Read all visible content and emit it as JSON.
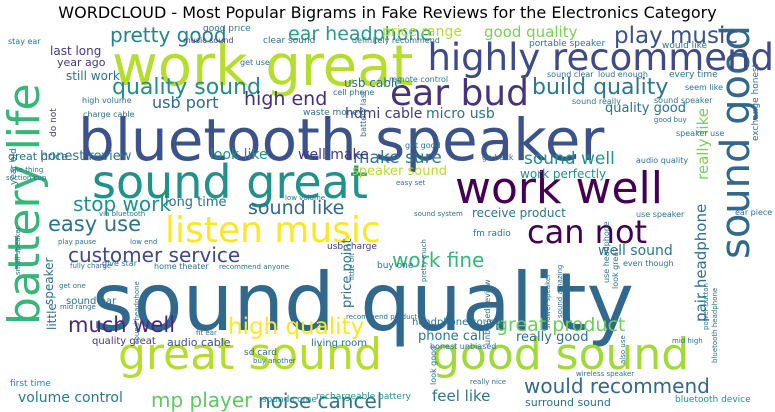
{
  "title": "WORDCLOUD - Most Popular Bigrams in Fake Reviews for the Electronics Category",
  "words": [
    {
      "text": "sound quality",
      "color": "#31688e"
    },
    {
      "text": "bluetooth speaker",
      "color": "#3b528b"
    },
    {
      "text": "work great",
      "color": "#b5de2b"
    },
    {
      "text": "battery life",
      "color": "#35b779"
    },
    {
      "text": "sound great",
      "color": "#21918c"
    },
    {
      "text": "work well",
      "color": "#440154"
    },
    {
      "text": "great sound",
      "color": "#b5de2b"
    },
    {
      "text": "good sound",
      "color": "#a0da39"
    },
    {
      "text": "sound good",
      "color": "#31688e"
    },
    {
      "text": "highly recommend",
      "color": "#3e4a89"
    },
    {
      "text": "listen music",
      "color": "#fde725"
    },
    {
      "text": "ear bud",
      "color": "#46337e"
    },
    {
      "text": "can not",
      "color": "#440154"
    },
    {
      "text": "build quality",
      "color": "#2a788e"
    },
    {
      "text": "quality sound",
      "color": "#228d8d"
    },
    {
      "text": "play music",
      "color": "#3b528b"
    },
    {
      "text": "pretty good",
      "color": "#26828e"
    },
    {
      "text": "ear headphone",
      "color": "#1f9e89"
    },
    {
      "text": "high end",
      "color": "#472d7b"
    },
    {
      "text": "customer service",
      "color": "#3e4a89"
    },
    {
      "text": "high quality",
      "color": "#fde725"
    },
    {
      "text": "much well",
      "color": "#482878"
    },
    {
      "text": "easy use",
      "color": "#2c728e"
    },
    {
      "text": "stop work",
      "color": "#21918c"
    },
    {
      "text": "sound like",
      "color": "#31688e"
    },
    {
      "text": "work fine",
      "color": "#35b779"
    },
    {
      "text": "noise cancel",
      "color": "#2c728e"
    },
    {
      "text": "mp player",
      "color": "#5ec962"
    },
    {
      "text": "would recommend",
      "color": "#31688e"
    },
    {
      "text": "great product",
      "color": "#6ece58"
    },
    {
      "text": "sound well",
      "color": "#21918c"
    },
    {
      "text": "make sure",
      "color": "#2a788e"
    },
    {
      "text": "look like",
      "color": "#21918c"
    },
    {
      "text": "well make",
      "color": "#443983"
    },
    {
      "text": "usb port",
      "color": "#31688e"
    },
    {
      "text": "good quality",
      "color": "#7ad151"
    },
    {
      "text": "price range",
      "color": "#b5de2b"
    },
    {
      "text": "quality good",
      "color": "#2c728e"
    },
    {
      "text": "pair headphone",
      "color": "#2c728e"
    },
    {
      "text": "really like",
      "color": "#7ad151"
    },
    {
      "text": "well sound",
      "color": "#2a788e"
    },
    {
      "text": "volume control",
      "color": "#2a788e"
    },
    {
      "text": "feel like",
      "color": "#2a788e"
    },
    {
      "text": "speaker sound",
      "color": "#b5de2b"
    },
    {
      "text": "work perfectly",
      "color": "#21918c"
    },
    {
      "text": "receive product",
      "color": "#2a788e"
    },
    {
      "text": "micro usb",
      "color": "#2c728e"
    },
    {
      "text": "hdmi cable",
      "color": "#443983"
    },
    {
      "text": "long time",
      "color": "#2c728e"
    },
    {
      "text": "honest review",
      "color": "#2c728e"
    },
    {
      "text": "great price",
      "color": "#2c728e"
    },
    {
      "text": "usb cable",
      "color": "#2c728e"
    },
    {
      "text": "still work",
      "color": "#2c728e"
    },
    {
      "text": "last long",
      "color": "#443983"
    },
    {
      "text": "year ago",
      "color": "#443983"
    },
    {
      "text": "phone call",
      "color": "#2a788e"
    },
    {
      "text": "really good",
      "color": "#2c728e"
    },
    {
      "text": "price point",
      "color": "#2c728e"
    },
    {
      "text": "audio cable",
      "color": "#3b528b"
    },
    {
      "text": "headphone sound",
      "color": "#2c728e"
    },
    {
      "text": "living room",
      "color": "#2c728e"
    },
    {
      "text": "quality great",
      "color": "#443983"
    },
    {
      "text": "surround sound",
      "color": "#2c728e"
    },
    {
      "text": "sound bar",
      "color": "#2c728e"
    },
    {
      "text": "speaker",
      "color": "#2c728e"
    },
    {
      "text": "little",
      "color": "#2c728e"
    },
    {
      "text": "rechargeable battery",
      "color": "#21918c"
    },
    {
      "text": "bluetooth device",
      "color": "#21918c"
    },
    {
      "text": "sound come",
      "color": "#21918c"
    },
    {
      "text": "first time",
      "color": "#21918c"
    },
    {
      "text": "usb charge",
      "color": "#443983"
    },
    {
      "text": "fm radio",
      "color": "#2c728e"
    },
    {
      "text": "buy one",
      "color": "#2c728e"
    },
    {
      "text": "good price",
      "color": "#2c728e"
    },
    {
      "text": "music sound",
      "color": "#443983"
    },
    {
      "text": "get use",
      "color": "#2c728e"
    },
    {
      "text": "clear sound",
      "color": "#2c728e"
    },
    {
      "text": "definitely recommend",
      "color": "#2c728e"
    },
    {
      "text": "portable speaker",
      "color": "#2c728e"
    },
    {
      "text": "would like",
      "color": "#2c728e"
    },
    {
      "text": "loud enough",
      "color": "#2c728e"
    },
    {
      "text": "sound clear",
      "color": "#2c728e"
    },
    {
      "text": "every time",
      "color": "#2c728e"
    },
    {
      "text": "seem like",
      "color": "#2c728e"
    },
    {
      "text": "exchange honest",
      "color": "#2c728e"
    },
    {
      "text": "sound speaker",
      "color": "#2c728e"
    },
    {
      "text": "sound really",
      "color": "#2c728e"
    },
    {
      "text": "remote control",
      "color": "#2c728e"
    },
    {
      "text": "cell phone",
      "color": "#2c728e"
    },
    {
      "text": "waste money",
      "color": "#2c728e"
    },
    {
      "text": "high volume",
      "color": "#2c728e"
    },
    {
      "text": "charge cable",
      "color": "#2c728e"
    },
    {
      "text": "do not",
      "color": "#443983"
    },
    {
      "text": "stay ear",
      "color": "#2c728e"
    },
    {
      "text": "year old",
      "color": "#2c728e"
    },
    {
      "text": "battery last",
      "color": "#2c728e"
    },
    {
      "text": "get good",
      "color": "#2c728e"
    },
    {
      "text": "go back",
      "color": "#2c728e"
    },
    {
      "text": "speaker use",
      "color": "#2c728e"
    },
    {
      "text": "audio quality",
      "color": "#2c728e"
    },
    {
      "text": "one thing",
      "color": "#2c728e"
    },
    {
      "text": "suction cup",
      "color": "#2c728e"
    },
    {
      "text": "easy set",
      "color": "#2c728e"
    },
    {
      "text": "via bluetooth",
      "color": "#2c728e"
    },
    {
      "text": "low volume",
      "color": "#2c728e"
    },
    {
      "text": "sound system",
      "color": "#2c728e"
    },
    {
      "text": "use speaker",
      "color": "#2c728e"
    },
    {
      "text": "ear piece",
      "color": "#2c728e"
    },
    {
      "text": "play pause",
      "color": "#2c728e"
    },
    {
      "text": "low end",
      "color": "#2c728e"
    },
    {
      "text": "fully charge",
      "color": "#2c728e"
    },
    {
      "text": "give star",
      "color": "#2c728e"
    },
    {
      "text": "get one",
      "color": "#2c728e"
    },
    {
      "text": "mid range",
      "color": "#2c728e"
    },
    {
      "text": "home theater",
      "color": "#2c728e"
    },
    {
      "text": "recommend anyone",
      "color": "#2c728e"
    },
    {
      "text": "even though",
      "color": "#2c728e"
    },
    {
      "text": "power button",
      "color": "#2c728e"
    },
    {
      "text": "use headphone",
      "color": "#2c728e"
    },
    {
      "text": "bluetooth headphone",
      "color": "#2c728e"
    },
    {
      "text": "mid high",
      "color": "#2c728e"
    },
    {
      "text": "sound amazing",
      "color": "#2c728e"
    },
    {
      "text": "shower speaker",
      "color": "#2c728e"
    },
    {
      "text": "look great",
      "color": "#2c728e"
    },
    {
      "text": "unbiased review",
      "color": "#2c728e"
    },
    {
      "text": "pretty much",
      "color": "#2c728e"
    },
    {
      "text": "recommend product",
      "color": "#2c728e"
    },
    {
      "text": "honest unbiased",
      "color": "#2c728e"
    },
    {
      "text": "fit ear",
      "color": "#2c728e"
    },
    {
      "text": "sd card",
      "color": "#2c728e"
    },
    {
      "text": "buy another",
      "color": "#2c728e"
    },
    {
      "text": "also use",
      "color": "#2c728e"
    },
    {
      "text": "wireless speaker",
      "color": "#2c728e"
    },
    {
      "text": "really nice",
      "color": "#2c728e"
    },
    {
      "text": "look good",
      "color": "#2c728e"
    },
    {
      "text": "good buy",
      "color": "#2c728e"
    },
    {
      "text": "small speaker",
      "color": "#2c728e"
    },
    {
      "text": "sound headphone",
      "color": "#2c728e"
    },
    {
      "text": "little bit",
      "color": "#2c728e"
    }
  ]
}
